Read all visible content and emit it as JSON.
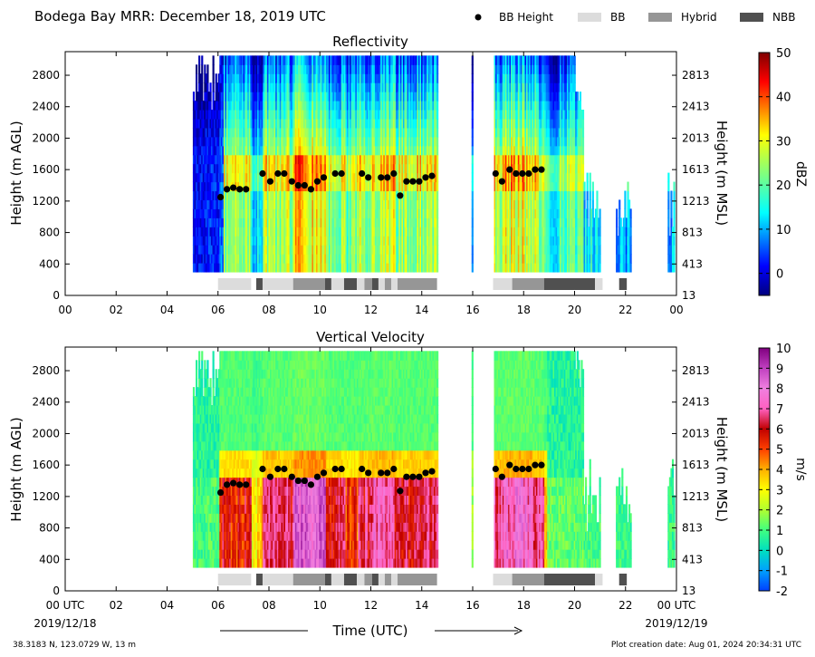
{
  "header": {
    "title": "Bodega Bay MRR:  December 18, 2019 UTC",
    "legend": [
      {
        "label": "BB Height",
        "kind": "dot",
        "color": "#000000"
      },
      {
        "label": "BB",
        "kind": "bar",
        "color": "#dcdcdc"
      },
      {
        "label": "Hybrid",
        "kind": "bar",
        "color": "#969696"
      },
      {
        "label": "NBB",
        "kind": "bar",
        "color": "#505050"
      }
    ]
  },
  "footer": {
    "location": "38.3183 N, 123.0729 W, 13 m",
    "creation": "Plot creation date: Aug 01, 2024 20:34:31 UTC",
    "xaxis_title": "Time (UTC)",
    "start_label": "00 UTC",
    "start_date": "2019/12/18",
    "end_label": "00 UTC",
    "end_date": "2019/12/19"
  },
  "chart_data": [
    {
      "type": "heatmap",
      "title": "Reflectivity",
      "ylabel": "Height (m AGL)",
      "ylabel_right": "Height (m MSL)",
      "x": {
        "min": 0,
        "max": 24,
        "unit": "hour UTC"
      },
      "xticks": [
        "00",
        "02",
        "04",
        "06",
        "08",
        "10",
        "12",
        "14",
        "16",
        "18",
        "20",
        "22",
        "00"
      ],
      "yticks_left": [
        "0",
        "400",
        "800",
        "1200",
        "1600",
        "2000",
        "2400",
        "2800"
      ],
      "yticks_right": [
        "13",
        "413",
        "813",
        "1213",
        "1613",
        "2013",
        "2413",
        "2813"
      ],
      "ylim": [
        0,
        3100
      ],
      "colorbar": {
        "label": "dBZ",
        "range": [
          -5,
          50
        ],
        "ticks": [
          "0",
          "10",
          "20",
          "30",
          "40",
          "50"
        ],
        "colormap": "jet"
      },
      "bb_height_points": [
        [
          6.1,
          1250
        ],
        [
          6.35,
          1350
        ],
        [
          6.6,
          1370
        ],
        [
          6.85,
          1350
        ],
        [
          7.1,
          1350
        ],
        [
          7.75,
          1550
        ],
        [
          8.05,
          1450
        ],
        [
          8.35,
          1550
        ],
        [
          8.6,
          1550
        ],
        [
          8.9,
          1450
        ],
        [
          9.15,
          1400
        ],
        [
          9.4,
          1400
        ],
        [
          9.65,
          1350
        ],
        [
          9.9,
          1450
        ],
        [
          10.15,
          1500
        ],
        [
          10.6,
          1550
        ],
        [
          10.85,
          1550
        ],
        [
          11.65,
          1550
        ],
        [
          11.9,
          1500
        ],
        [
          12.4,
          1500
        ],
        [
          12.65,
          1500
        ],
        [
          12.9,
          1550
        ],
        [
          13.15,
          1270
        ],
        [
          13.4,
          1450
        ],
        [
          13.65,
          1450
        ],
        [
          13.9,
          1450
        ],
        [
          14.15,
          1500
        ],
        [
          14.4,
          1520
        ],
        [
          16.9,
          1550
        ],
        [
          17.15,
          1450
        ],
        [
          17.45,
          1600
        ],
        [
          17.7,
          1550
        ],
        [
          17.95,
          1550
        ],
        [
          18.2,
          1550
        ],
        [
          18.45,
          1600
        ],
        [
          18.7,
          1600
        ]
      ],
      "bb_type_bars": [
        {
          "start": 6.0,
          "end": 7.3,
          "type": "BB"
        },
        {
          "start": 7.5,
          "end": 7.75,
          "type": "NBB"
        },
        {
          "start": 7.75,
          "end": 8.95,
          "type": "BB"
        },
        {
          "start": 8.95,
          "end": 10.2,
          "type": "Hybrid"
        },
        {
          "start": 10.2,
          "end": 10.45,
          "type": "NBB"
        },
        {
          "start": 10.45,
          "end": 10.95,
          "type": "BB"
        },
        {
          "start": 10.95,
          "end": 11.45,
          "type": "NBB"
        },
        {
          "start": 11.45,
          "end": 11.75,
          "type": "BB"
        },
        {
          "start": 11.75,
          "end": 12.05,
          "type": "Hybrid"
        },
        {
          "start": 12.05,
          "end": 12.3,
          "type": "NBB"
        },
        {
          "start": 12.3,
          "end": 12.55,
          "type": "BB"
        },
        {
          "start": 12.55,
          "end": 12.8,
          "type": "Hybrid"
        },
        {
          "start": 12.8,
          "end": 13.05,
          "type": "BB"
        },
        {
          "start": 13.05,
          "end": 14.6,
          "type": "Hybrid"
        },
        {
          "start": 16.8,
          "end": 17.55,
          "type": "BB"
        },
        {
          "start": 17.55,
          "end": 18.8,
          "type": "Hybrid"
        },
        {
          "start": 18.8,
          "end": 20.8,
          "type": "NBB"
        },
        {
          "start": 20.8,
          "end": 21.1,
          "type": "BB"
        },
        {
          "start": 21.75,
          "end": 22.05,
          "type": "NBB"
        }
      ]
    },
    {
      "type": "heatmap",
      "title": "Vertical Velocity",
      "ylabel": "Height (m AGL)",
      "ylabel_right": "Height (m MSL)",
      "x": {
        "min": 0,
        "max": 24,
        "unit": "hour UTC"
      },
      "xticks": [
        "00 UTC",
        "02",
        "04",
        "06",
        "08",
        "10",
        "12",
        "14",
        "16",
        "18",
        "20",
        "22",
        "00 UTC"
      ],
      "yticks_left": [
        "0",
        "400",
        "800",
        "1200",
        "1600",
        "2000",
        "2400",
        "2800"
      ],
      "yticks_right": [
        "13",
        "413",
        "813",
        "1213",
        "1613",
        "2013",
        "2413",
        "2813"
      ],
      "ylim": [
        0,
        3100
      ],
      "colorbar": {
        "label": "m/s",
        "range": [
          -2,
          10
        ],
        "ticks": [
          "-2",
          "-1",
          "0",
          "1",
          "2",
          "3",
          "4",
          "5",
          "6",
          "7",
          "8",
          "9",
          "10"
        ]
      },
      "bb_height_points": [
        [
          6.1,
          1250
        ],
        [
          6.35,
          1350
        ],
        [
          6.6,
          1370
        ],
        [
          6.85,
          1350
        ],
        [
          7.1,
          1350
        ],
        [
          7.75,
          1550
        ],
        [
          8.05,
          1450
        ],
        [
          8.35,
          1550
        ],
        [
          8.6,
          1550
        ],
        [
          8.9,
          1450
        ],
        [
          9.15,
          1400
        ],
        [
          9.4,
          1400
        ],
        [
          9.65,
          1350
        ],
        [
          9.9,
          1450
        ],
        [
          10.15,
          1500
        ],
        [
          10.6,
          1550
        ],
        [
          10.85,
          1550
        ],
        [
          11.65,
          1550
        ],
        [
          11.9,
          1500
        ],
        [
          12.4,
          1500
        ],
        [
          12.65,
          1500
        ],
        [
          12.9,
          1550
        ],
        [
          13.15,
          1270
        ],
        [
          13.4,
          1450
        ],
        [
          13.65,
          1450
        ],
        [
          13.9,
          1450
        ],
        [
          14.15,
          1500
        ],
        [
          14.4,
          1520
        ],
        [
          16.9,
          1550
        ],
        [
          17.15,
          1450
        ],
        [
          17.45,
          1600
        ],
        [
          17.7,
          1550
        ],
        [
          17.95,
          1550
        ],
        [
          18.2,
          1550
        ],
        [
          18.45,
          1600
        ],
        [
          18.7,
          1600
        ]
      ],
      "bb_type_bars": [
        {
          "start": 6.0,
          "end": 7.3,
          "type": "BB"
        },
        {
          "start": 7.5,
          "end": 7.75,
          "type": "NBB"
        },
        {
          "start": 7.75,
          "end": 8.95,
          "type": "BB"
        },
        {
          "start": 8.95,
          "end": 10.2,
          "type": "Hybrid"
        },
        {
          "start": 10.2,
          "end": 10.45,
          "type": "NBB"
        },
        {
          "start": 10.45,
          "end": 10.95,
          "type": "BB"
        },
        {
          "start": 10.95,
          "end": 11.45,
          "type": "NBB"
        },
        {
          "start": 11.45,
          "end": 11.75,
          "type": "BB"
        },
        {
          "start": 11.75,
          "end": 12.05,
          "type": "Hybrid"
        },
        {
          "start": 12.05,
          "end": 12.3,
          "type": "NBB"
        },
        {
          "start": 12.3,
          "end": 12.55,
          "type": "BB"
        },
        {
          "start": 12.55,
          "end": 12.8,
          "type": "Hybrid"
        },
        {
          "start": 12.8,
          "end": 13.05,
          "type": "BB"
        },
        {
          "start": 13.05,
          "end": 14.6,
          "type": "Hybrid"
        },
        {
          "start": 16.8,
          "end": 17.55,
          "type": "BB"
        },
        {
          "start": 17.55,
          "end": 18.8,
          "type": "Hybrid"
        },
        {
          "start": 18.8,
          "end": 20.8,
          "type": "NBB"
        },
        {
          "start": 20.8,
          "end": 21.1,
          "type": "BB"
        },
        {
          "start": 21.75,
          "end": 22.05,
          "type": "NBB"
        }
      ]
    }
  ]
}
